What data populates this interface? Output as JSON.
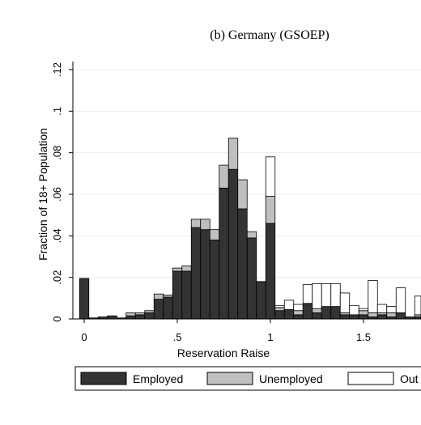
{
  "chart_data": {
    "type": "bar",
    "stacked": true,
    "title": "(b) Germany (GSOEP)",
    "xlabel": "Reservation Raise",
    "ylabel": "Fraction of 18+ Population",
    "xlim": [
      -0.05,
      1.83
    ],
    "ylim": [
      0,
      0.12
    ],
    "grid": true,
    "legend_position": "bottom",
    "bin_width": 0.05,
    "x_ticks": [
      {
        "value": 0,
        "label": "0"
      },
      {
        "value": 0.5,
        "label": ".5"
      },
      {
        "value": 1,
        "label": "1"
      },
      {
        "value": 1.5,
        "label": "1.5"
      }
    ],
    "y_ticks": [
      {
        "value": 0,
        "label": "0"
      },
      {
        "value": 0.02,
        "label": ".02"
      },
      {
        "value": 0.04,
        "label": ".04"
      },
      {
        "value": 0.06,
        "label": ".06"
      },
      {
        "value": 0.08,
        "label": ".08"
      },
      {
        "value": 0.1,
        "label": ".1"
      },
      {
        "value": 0.12,
        "label": ".12"
      }
    ],
    "x": [
      0,
      0.05,
      0.1,
      0.15,
      0.2,
      0.25,
      0.3,
      0.35,
      0.4,
      0.45,
      0.5,
      0.55,
      0.6,
      0.65,
      0.7,
      0.75,
      0.8,
      0.85,
      0.9,
      0.95,
      1.0,
      1.05,
      1.1,
      1.15,
      1.2,
      1.25,
      1.3,
      1.35,
      1.4,
      1.45,
      1.5,
      1.55,
      1.6,
      1.65,
      1.7,
      1.75,
      1.8
    ],
    "series": [
      {
        "name": "Employed",
        "color": "#333333",
        "values": [
          0.0195,
          0.0005,
          0.001,
          0.0015,
          0.0005,
          0.0015,
          0.002,
          0.003,
          0.0095,
          0.0105,
          0.023,
          0.023,
          0.044,
          0.043,
          0.038,
          0.063,
          0.072,
          0.053,
          0.039,
          0.018,
          0.046,
          0.004,
          0.0045,
          0.002,
          0.0075,
          0.003,
          0.006,
          0.006,
          0.002,
          0.002,
          0.002,
          0.001,
          0.002,
          0.001,
          0.003,
          0.001,
          0.001
        ]
      },
      {
        "name": "Unemployed",
        "color": "#bfbfbf",
        "values": [
          0.0,
          0.0,
          0.0,
          0.0,
          0.0,
          0.0015,
          0.001,
          0.001,
          0.0025,
          0.001,
          0.0015,
          0.0025,
          0.004,
          0.005,
          0.005,
          0.011,
          0.015,
          0.014,
          0.003,
          0.0,
          0.013,
          0.0015,
          0.0,
          0.002,
          0.0,
          0.002,
          0.0,
          0.0,
          0.001,
          0.0,
          0.002,
          0.002,
          0.001,
          0.002,
          0.0,
          0.0,
          0.001
        ]
      },
      {
        "name": "Out",
        "color": "#ffffff",
        "values": [
          0.0,
          0.0,
          0.0,
          0.0,
          0.0,
          0.0,
          0.0,
          0.0,
          0.0,
          0.0,
          0.0,
          0.0,
          0.0,
          0.0,
          0.0,
          0.0,
          0.0,
          0.0,
          0.0,
          0.0,
          0.019,
          0.001,
          0.0045,
          0.003,
          0.009,
          0.012,
          0.011,
          0.011,
          0.0095,
          0.0045,
          0.001,
          0.0155,
          0.004,
          0.003,
          0.012,
          0.0,
          0.009
        ]
      }
    ]
  }
}
